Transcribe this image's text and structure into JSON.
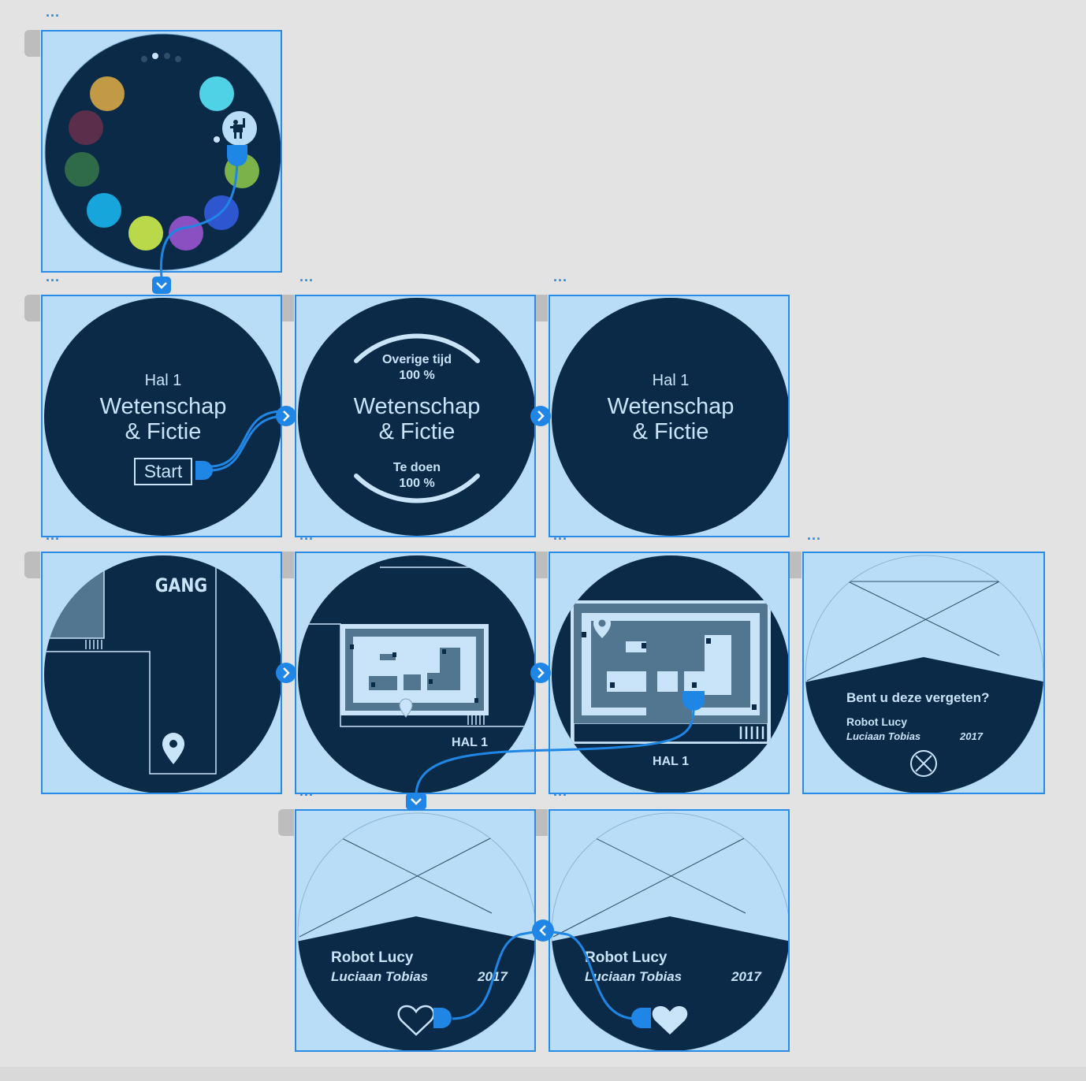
{
  "ellipsis": "...",
  "start_label": "Start",
  "hal_label": "Hal 1",
  "hal_map_label": "HAL 1",
  "title_line1": "Wetenschap",
  "title_line2": "& Fictie",
  "remaining_label": "Overige tijd",
  "remaining_value": "100 %",
  "todo_label": "Te doen",
  "todo_value": "100 %",
  "gang_label": "GANG",
  "forgot_question": "Bent u deze vergeten?",
  "artwork_title": "Robot Lucy",
  "artist": "Luciaan Tobias",
  "year": "2017",
  "colors": {
    "accent": "#2a8be6",
    "watch_bg": "#0b2a47",
    "artboard": "#b9ddf6",
    "light_text": "#c9e3f8",
    "room_fill": "#527690"
  },
  "palette_circles": [
    "#c29a46",
    "#5b2f4b",
    "#2f6b49",
    "#17a6dc",
    "#b9d84a",
    "#8a50c2",
    "#2d56cf",
    "#7cb24a",
    "#4fd2e6"
  ],
  "icons": [
    "robot-icon",
    "location-pin-icon",
    "close-circle-icon",
    "heart-outline-icon",
    "heart-filled-icon",
    "chevron-down-icon",
    "chevron-right-icon",
    "chevron-left-icon"
  ]
}
